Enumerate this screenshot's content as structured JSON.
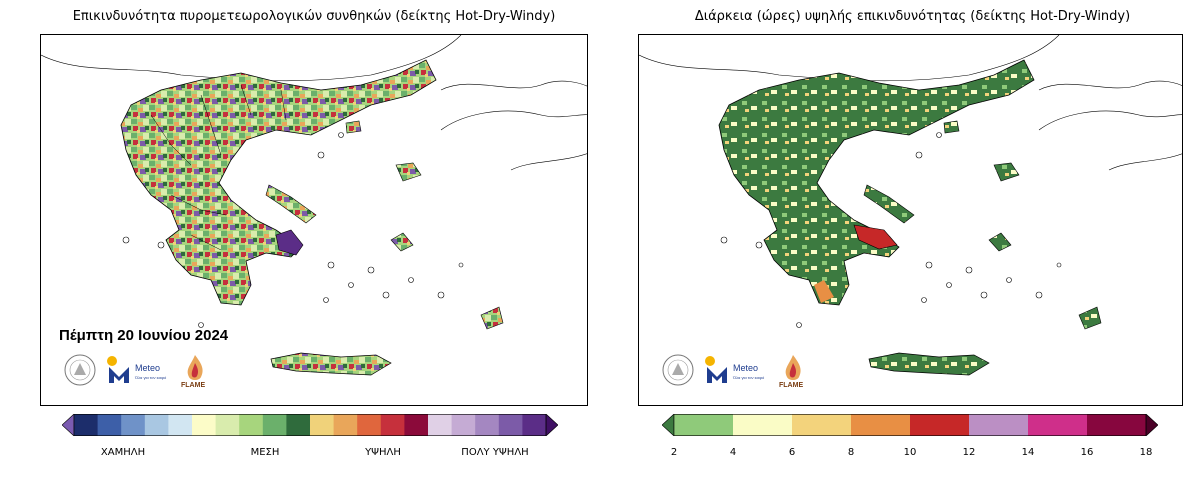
{
  "left_panel": {
    "title": "Επικινδυνότητα πυρομετεωρολογικών συνθηκών (δείκτης Hot-Dry-Windy)",
    "date": "Πέμπτη 20 Ιουνίου 2024",
    "colorbar": {
      "colors": [
        "#7b5bb1",
        "#1c2d6b",
        "#3d5fa8",
        "#6f92c8",
        "#a9c7e2",
        "#d2e6f2",
        "#fcfcc8",
        "#d9ecad",
        "#a7d57d",
        "#6bb06b",
        "#2f6b3c",
        "#f0d27a",
        "#e9a65a",
        "#e0663d",
        "#c6303c",
        "#8b0a3a",
        "#e0d0e6",
        "#c5abd4",
        "#a487c1",
        "#7c5ba8",
        "#5b2d87",
        "#3f0f63"
      ],
      "labels": [
        "ΧΑΜΗΛΗ",
        "ΜΕΣΗ",
        "ΥΨΗΛΗ",
        "ΠΟΛΥ ΥΨΗΛΗ"
      ]
    }
  },
  "right_panel": {
    "title": "Διάρκεια (ώρες) υψηλής επικινδυνότητας (δείκτης Hot-Dry-Windy)",
    "colorbar": {
      "colors": [
        "#3c7a40",
        "#8fca7a",
        "#fafcc6",
        "#f3d37c",
        "#e88f44",
        "#c62828",
        "#bb8fc4",
        "#cf2f8a",
        "#87063e",
        "#4a0026"
      ],
      "ticks": [
        "2",
        "4",
        "6",
        "8",
        "10",
        "12",
        "14",
        "16",
        "18"
      ]
    }
  },
  "logos": {
    "meteo": "Meteo",
    "meteo_sub": "Όλα για τον καιρό",
    "flame": "FLAME"
  }
}
